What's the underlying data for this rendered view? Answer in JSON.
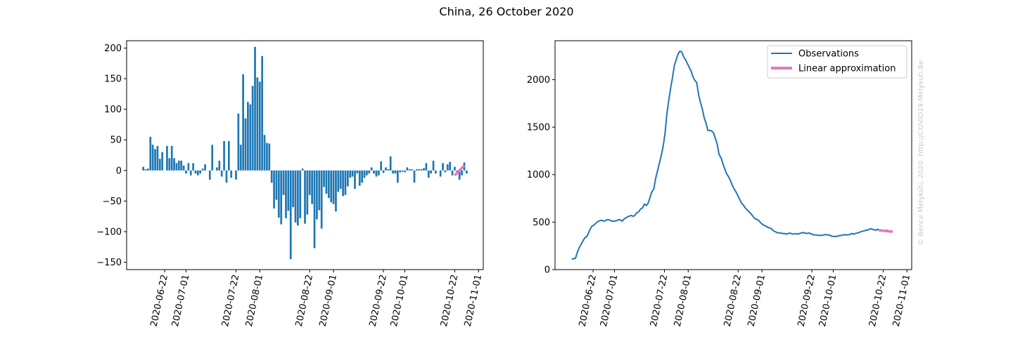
{
  "figure": {
    "title": "China, 26 October 2020",
    "watermark": "© Bence Melykúti, 2020. http://COVID19.Melykuti.Be"
  },
  "colors": {
    "bar": "#1f77b4",
    "observations": "#1f77b4",
    "linear": "#e377c2",
    "axis": "#000000"
  },
  "chart_data": [
    {
      "type": "bar",
      "name": "daily-change",
      "start_date": "2020-06-13",
      "x_tick_labels": [
        "2020-06-22",
        "2020-07-01",
        "2020-07-22",
        "2020-08-01",
        "2020-08-22",
        "2020-09-01",
        "2020-09-22",
        "2020-10-01",
        "2020-10-22",
        "2020-11-01"
      ],
      "xlim": [
        "2020-06-06",
        "2020-11-03"
      ],
      "ylim": [
        -162,
        212
      ],
      "y_ticks": [
        -150,
        -100,
        -50,
        0,
        50,
        100,
        150,
        200
      ],
      "values": [
        6,
        2,
        3,
        55,
        42,
        35,
        40,
        19,
        30,
        0,
        40,
        20,
        40,
        20,
        12,
        16,
        16,
        8,
        -5,
        12,
        -8,
        12,
        -5,
        -8,
        -5,
        3,
        10,
        0,
        -15,
        42,
        0,
        5,
        16,
        -10,
        48,
        -20,
        48,
        -12,
        0,
        -15,
        93,
        42,
        157,
        85,
        112,
        108,
        138,
        202,
        152,
        145,
        187,
        58,
        45,
        44,
        -20,
        -62,
        -48,
        -77,
        -88,
        -40,
        -78,
        -66,
        -145,
        -60,
        -85,
        -90,
        -78,
        3,
        -87,
        -72,
        -40,
        -55,
        -127,
        -80,
        -65,
        -95,
        -27,
        -38,
        -45,
        -52,
        -55,
        -67,
        -35,
        -30,
        -42,
        -40,
        -26,
        -12,
        -10,
        -30,
        -5,
        -25,
        -20,
        -12,
        -8,
        -5,
        5,
        -5,
        -10,
        -8,
        15,
        -4,
        5,
        2,
        23,
        -5,
        -5,
        -20,
        -3,
        -2,
        -3,
        5,
        2,
        2,
        -20,
        2,
        2,
        2,
        4,
        12,
        -12,
        -5,
        16,
        -5,
        0,
        -10,
        12,
        -3,
        10,
        14,
        -8,
        6,
        -5,
        -15,
        -8,
        13,
        -5
      ],
      "series": [
        {
          "name": "Linear approximation",
          "x": [
            "2020-10-22",
            "2020-10-26"
          ],
          "y": [
            -8,
            8
          ]
        }
      ]
    },
    {
      "type": "line",
      "name": "active-cases",
      "start_date": "2020-06-13",
      "x_tick_labels": [
        "2020-06-22",
        "2020-07-01",
        "2020-07-22",
        "2020-08-01",
        "2020-08-22",
        "2020-09-01",
        "2020-09-22",
        "2020-10-01",
        "2020-10-22",
        "2020-11-01"
      ],
      "xlim": [
        "2020-06-06",
        "2020-11-03"
      ],
      "ylim": [
        0,
        2410
      ],
      "y_ticks": [
        0,
        500,
        1000,
        1500,
        2000
      ],
      "legend": "top-right",
      "series": [
        {
          "name": "Observations",
          "values": [
            110,
            115,
            118,
            180,
            230,
            265,
            300,
            335,
            345,
            385,
            430,
            460,
            470,
            490,
            505,
            515,
            520,
            510,
            515,
            525,
            525,
            515,
            510,
            510,
            515,
            525,
            525,
            510,
            530,
            545,
            555,
            565,
            570,
            560,
            575,
            600,
            610,
            640,
            650,
            690,
            675,
            700,
            760,
            820,
            850,
            960,
            1040,
            1120,
            1200,
            1300,
            1430,
            1640,
            1780,
            1910,
            2020,
            2150,
            2210,
            2270,
            2300,
            2290,
            2240,
            2210,
            2170,
            2130,
            2090,
            2030,
            1990,
            1970,
            1840,
            1760,
            1690,
            1600,
            1540,
            1465,
            1465,
            1460,
            1440,
            1380,
            1320,
            1210,
            1180,
            1120,
            1060,
            1010,
            980,
            940,
            890,
            850,
            820,
            780,
            740,
            700,
            680,
            650,
            630,
            610,
            590,
            565,
            540,
            530,
            520,
            500,
            480,
            465,
            460,
            445,
            440,
            430,
            410,
            400,
            390,
            385,
            385,
            380,
            380,
            375,
            380,
            385,
            375,
            375,
            380,
            375,
            380,
            385,
            390,
            385,
            380,
            385,
            380,
            370,
            365,
            365,
            360,
            360,
            360,
            365,
            370,
            365,
            365,
            355,
            350,
            350,
            350,
            355,
            360,
            360,
            370,
            365,
            365,
            370,
            380,
            375,
            380,
            385,
            390,
            400,
            405,
            410,
            415,
            420,
            430,
            425,
            420,
            415,
            425,
            415,
            410,
            405,
            410,
            415,
            405,
            400,
            410
          ],
          "x_end": "2020-10-26"
        },
        {
          "name": "Linear approximation",
          "x": [
            "2020-10-20",
            "2020-10-26"
          ],
          "y": [
            415,
            398
          ]
        }
      ]
    }
  ]
}
